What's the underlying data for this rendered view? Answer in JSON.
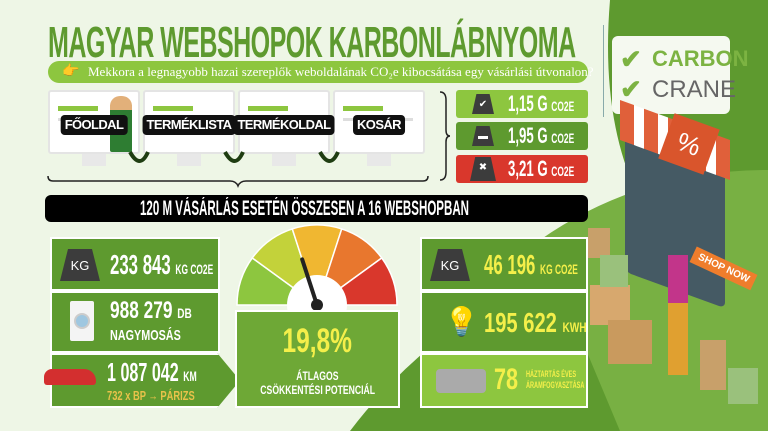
{
  "title": "MAGYAR WEBSHOPOK KARBONLÁBNYOMA",
  "subtitle": "Mekkora a legnagyobb hazai szereplők weboldalának CO₂e kibocsátása egy vásárlási útvonalon?",
  "logo": {
    "line1": "CARBON",
    "line2": "CRANE"
  },
  "journey": [
    {
      "label": "FŐOLDAL"
    },
    {
      "label": "TERMÉKLISTA"
    },
    {
      "label": "TERMÉKOLDAL"
    },
    {
      "label": "KOSÁR"
    }
  ],
  "badges": [
    {
      "value": "1,15 G",
      "unit": "CO2E",
      "color": "#8dc63f"
    },
    {
      "value": "1,95 G",
      "unit": "CO2E",
      "color": "#5e9a2f"
    },
    {
      "value": "3,21 G",
      "unit": "CO2E",
      "color": "#d9372c"
    }
  ],
  "summary_bar": "120 M VÁSÁRLÁS ESETÉN ÖSSZESEN A 16 WEBSHOPBAN",
  "left": {
    "co2": {
      "icon_label": "KG",
      "value": "233 843",
      "unit": "KG CO2E"
    },
    "wash": {
      "value": "988 279",
      "unit": "DB",
      "label": "NAGYMOSÁS"
    },
    "car": {
      "value": "1 087 042",
      "unit": "KM",
      "note": "732 x BP → PÁRIZS"
    }
  },
  "center": {
    "percent": "19,8%",
    "label1": "ÁTLAGOS",
    "label2": "CSÖKKENTÉSI POTENCIÁL",
    "gauge_level": 0.2
  },
  "right": {
    "co2": {
      "icon_label": "KG",
      "value": "46 196",
      "unit": "KG CO2E"
    },
    "energy": {
      "value": "195 622",
      "unit": "KWH"
    },
    "households": {
      "value": "78",
      "label1": "HÁZTARTÁS ÉVES",
      "label2": "ÁRAMFOGYASZTÁSA"
    }
  },
  "shop": {
    "button": "SHOP NOW",
    "sign": "%"
  }
}
